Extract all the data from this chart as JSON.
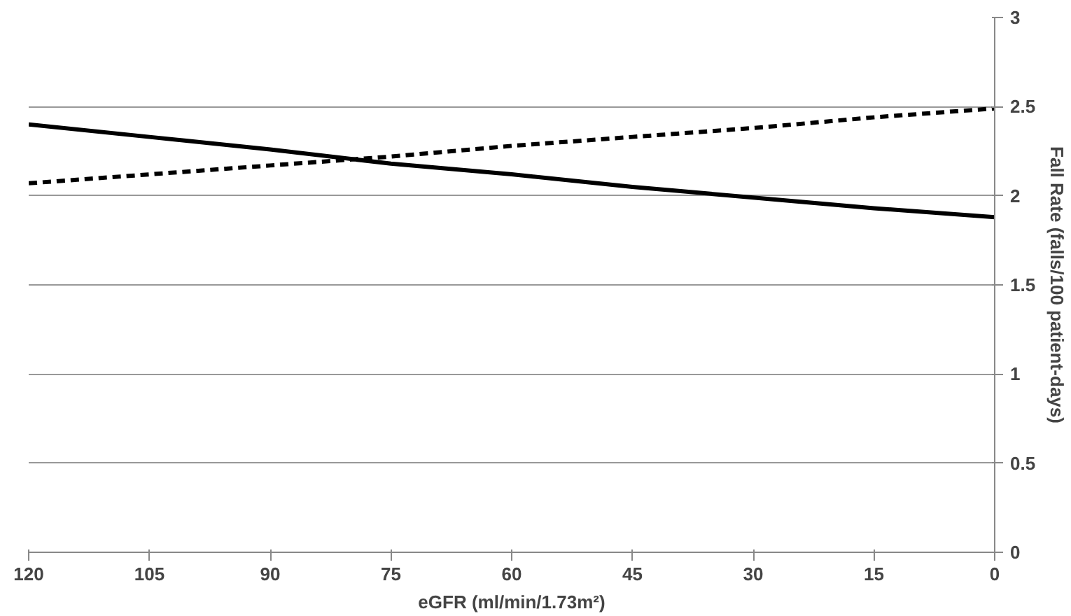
{
  "chart_data": {
    "type": "line",
    "xlabel": "eGFR (ml/min/1.73m²)",
    "ylabel": "Fall Rate (falls/100 patient-days)",
    "x": [
      120,
      105,
      90,
      75,
      60,
      45,
      30,
      15,
      0
    ],
    "series": [
      {
        "color": "#000000",
        "line_style": "solid",
        "values": [
          2.4,
          2.33,
          2.26,
          2.18,
          2.12,
          2.05,
          1.99,
          1.93,
          1.88
        ]
      },
      {
        "color": "#000000",
        "line_style": "dashed",
        "values": [
          2.07,
          2.12,
          2.17,
          2.22,
          2.28,
          2.33,
          2.38,
          2.44,
          2.49
        ]
      }
    ],
    "xlim": [
      120,
      0
    ],
    "ylim": [
      0,
      3
    ],
    "xticks": [
      120,
      105,
      90,
      75,
      60,
      45,
      30,
      15,
      0
    ],
    "yticks": [
      0,
      0.5,
      1,
      1.5,
      2,
      2.5,
      3
    ],
    "grid": "y",
    "marker": "none"
  }
}
